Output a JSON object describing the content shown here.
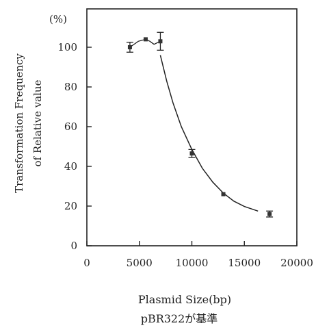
{
  "chart_data": {
    "type": "scatter",
    "unit_label": "(%)",
    "ylabel_line1": "Transformation   Frequency",
    "ylabel_line2": "of  Relative  value",
    "xlabel_line1": "Plasmid Size(bp)",
    "xlabel_line2": "pBR322が基準",
    "xlim": [
      0,
      20000
    ],
    "ylim": [
      0,
      100
    ],
    "x_ticks": [
      0,
      5000,
      10000,
      15000,
      20000
    ],
    "y_ticks": [
      0,
      20,
      40,
      60,
      80,
      100
    ],
    "grid": false,
    "points": [
      {
        "x": 4100,
        "y": 100,
        "err": 2.5
      },
      {
        "x": 5600,
        "y": 104,
        "err": 0
      },
      {
        "x": 7000,
        "y": 103,
        "err": 4.5
      },
      {
        "x": 10000,
        "y": 46.5,
        "err": 2
      },
      {
        "x": 13000,
        "y": 26,
        "err": 0
      },
      {
        "x": 17400,
        "y": 16,
        "err": 1.5
      }
    ],
    "connector": [
      [
        4100,
        100
      ],
      [
        4900,
        103
      ],
      [
        5600,
        104
      ],
      [
        6000,
        103
      ],
      [
        6400,
        101.5
      ],
      [
        7000,
        103
      ]
    ],
    "fit_curve": [
      [
        7000,
        96
      ],
      [
        7600,
        83
      ],
      [
        8200,
        72
      ],
      [
        9000,
        60
      ],
      [
        10000,
        48.5
      ],
      [
        11000,
        39
      ],
      [
        12000,
        32
      ],
      [
        13000,
        26.5
      ],
      [
        14000,
        22.5
      ],
      [
        15000,
        19.8
      ],
      [
        16300,
        17.5
      ]
    ]
  }
}
